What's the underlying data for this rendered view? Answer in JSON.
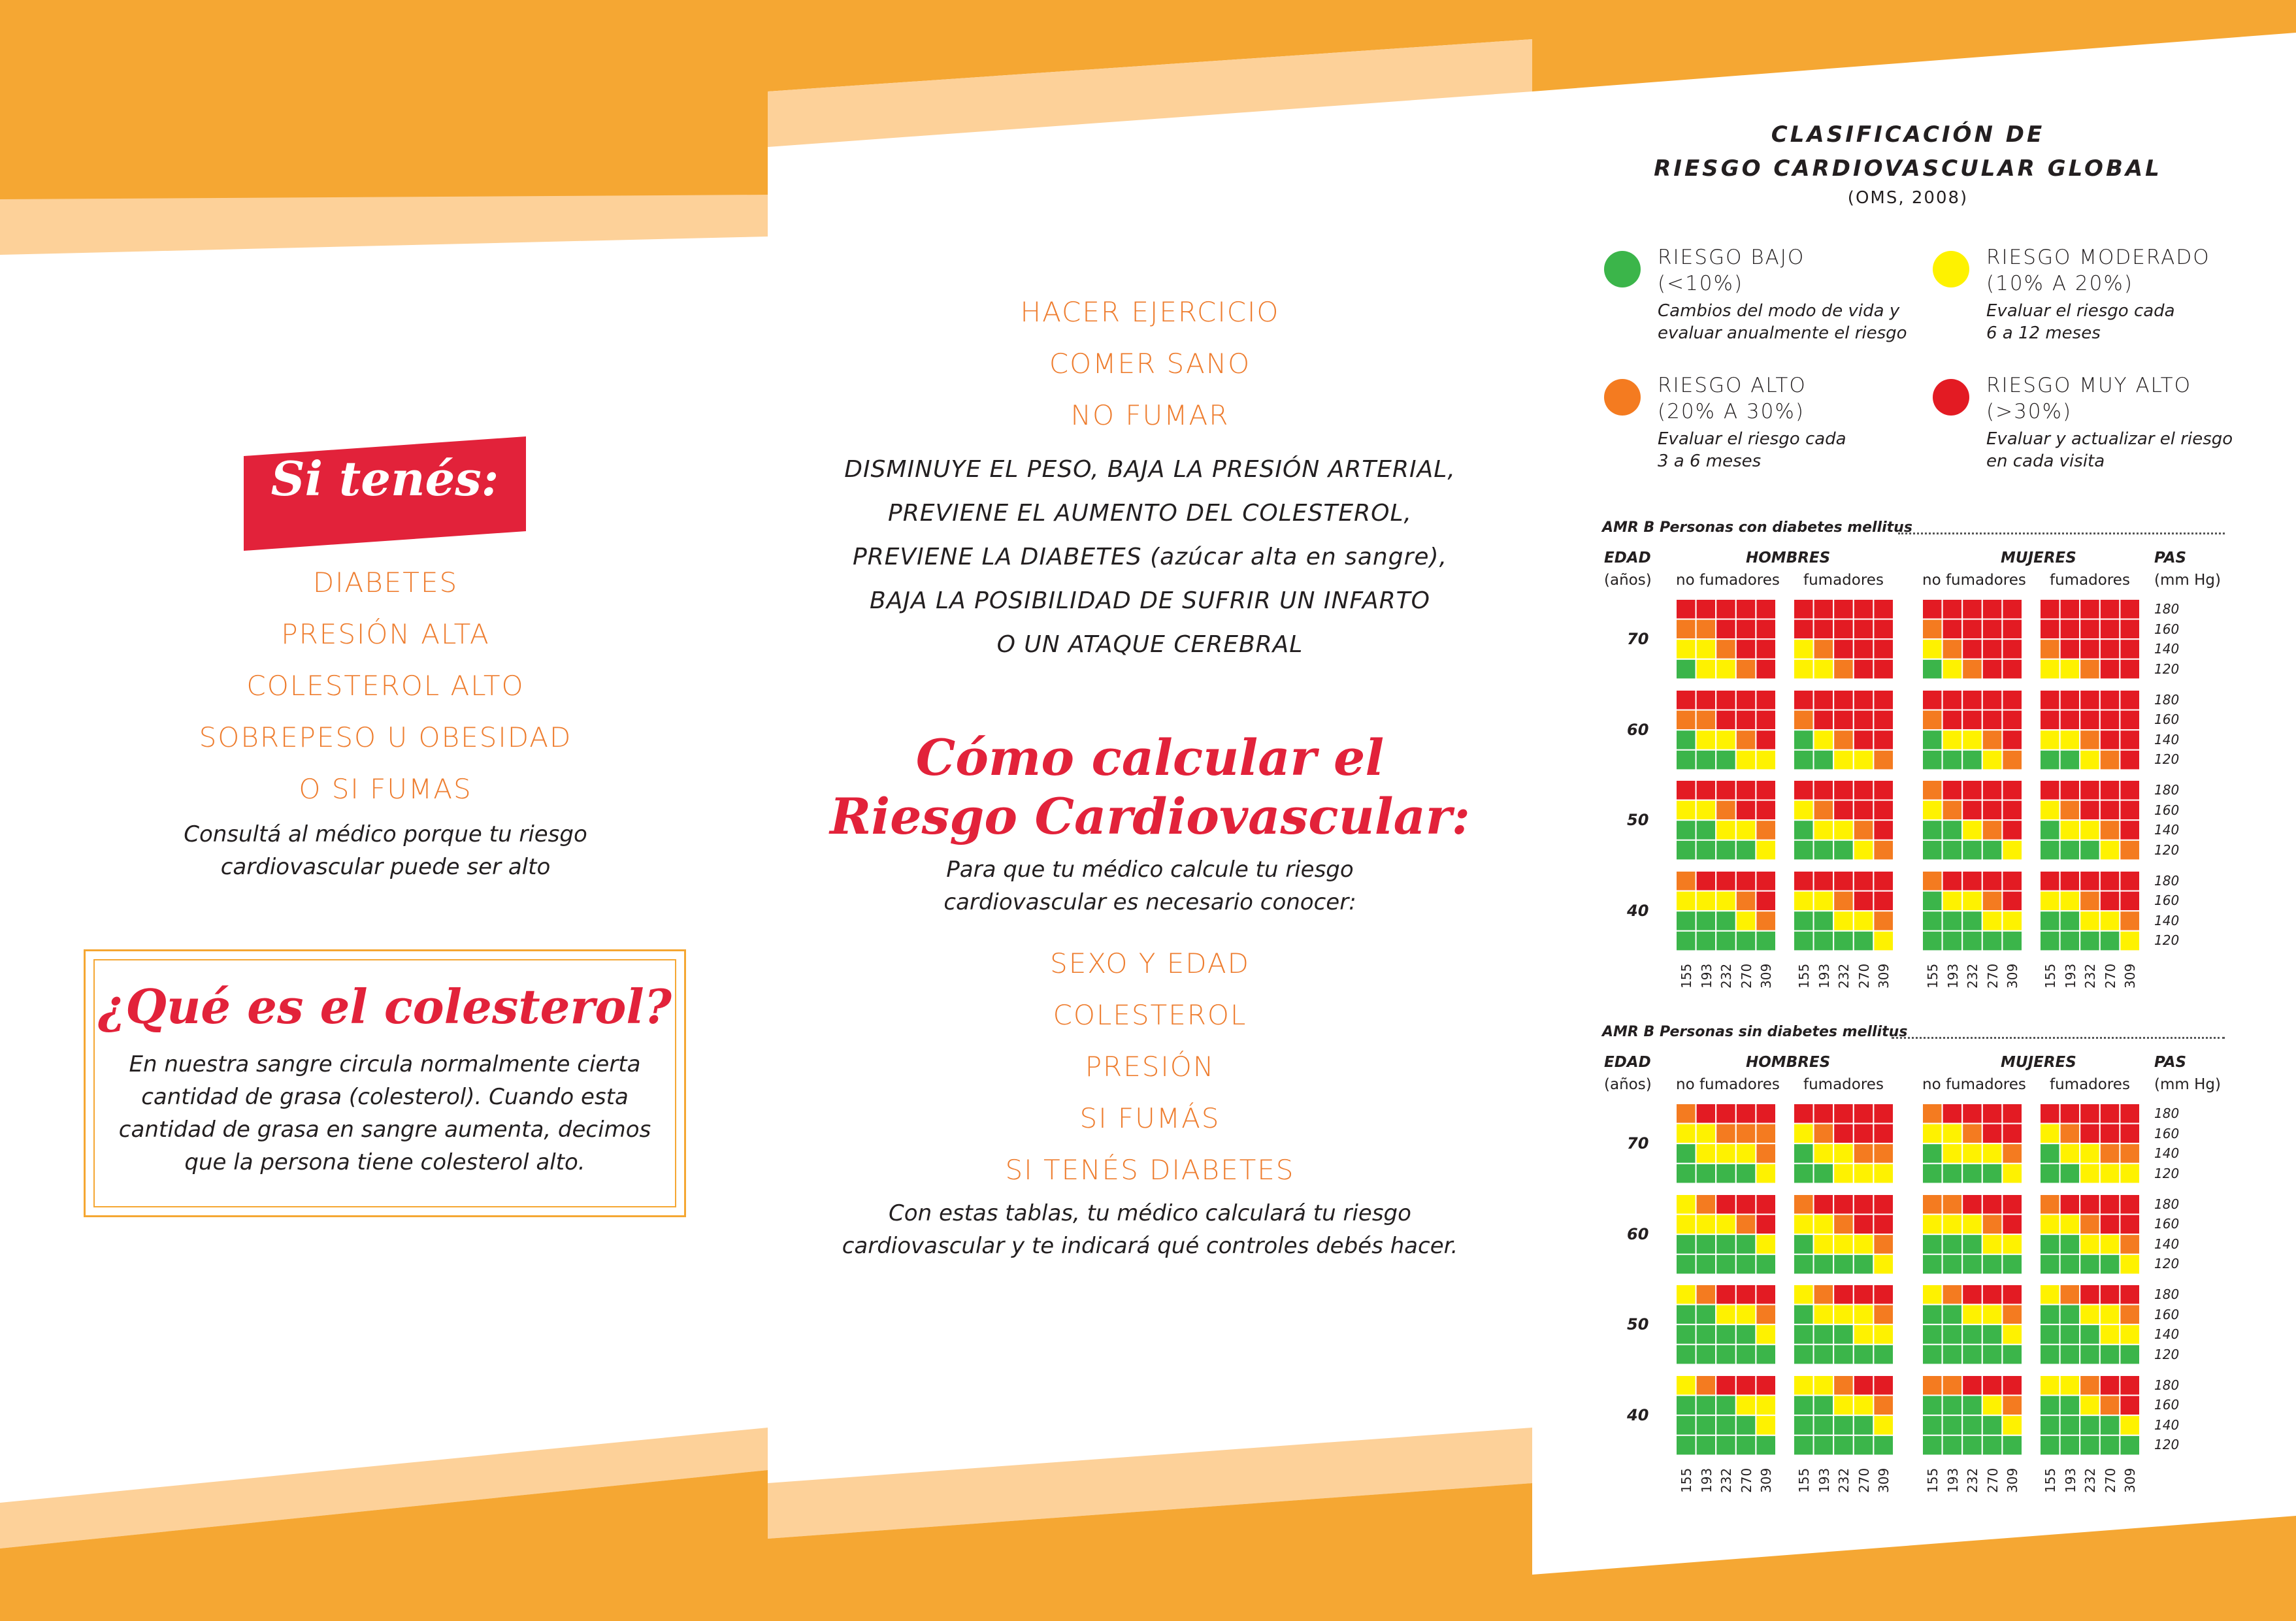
{
  "colors": {
    "orange_band": "#f5a733",
    "orange_light": "#fdd199",
    "accent_orange": "#ee7d2f",
    "accent_red": "#e2223a",
    "risk_low": "#3bb54a",
    "risk_moderate": "#fef200",
    "risk_high": "#f47b20",
    "risk_very_high": "#e31b23"
  },
  "left": {
    "badge_text": "Si tenés:",
    "conditions": [
      "DIABETES",
      "PRESIÓN ALTA",
      "COLESTEROL ALTO",
      "SOBREPESO U OBESIDAD",
      "O SI FUMAS"
    ],
    "note_line1": "Consultá al médico porque tu riesgo",
    "note_line2": "cardiovascular puede ser alto",
    "chol_title": "¿Qué es el colesterol?",
    "chol_text": [
      "En nuestra sangre circula normalmente cierta",
      "cantidad de grasa (colesterol). Cuando esta",
      "cantidad de grasa en sangre aumenta, decimos",
      "que la persona tiene colesterol alto."
    ]
  },
  "middle": {
    "habits": [
      "HACER EJERCICIO",
      "COMER SANO",
      "NO FUMAR"
    ],
    "benefits": [
      "DISMINUYE EL PESO, BAJA LA PRESIÓN ARTERIAL,",
      "PREVIENE EL AUMENTO DEL COLESTEROL,",
      "PREVIENE LA DIABETES",
      "(azúcar alta en sangre),",
      "BAJA LA POSIBILIDAD DE SUFRIR UN INFARTO",
      "O UN ATAQUE CEREBRAL"
    ],
    "calc_title_1": "Cómo calcular el",
    "calc_title_2": "Riesgo Cardiovascular:",
    "calc_sub_1": "Para que tu médico calcule tu riesgo",
    "calc_sub_2": "cardiovascular es necesario conocer:",
    "factors": [
      "SEXO Y EDAD",
      "COLESTEROL",
      "PRESIÓN",
      "SI FUMÁS",
      "SI TENÉS DIABETES"
    ],
    "note_1": "Con estas tablas, tu médico calculará tu riesgo",
    "note_2": "cardiovascular y te indicará qué controles debés hacer."
  },
  "right": {
    "title_1": "CLASIFICACIÓN DE",
    "title_2": "RIESGO CARDIOVASCULAR GLOBAL",
    "source": "(OMS, 2008)",
    "legend": [
      {
        "head1": "RIESGO BAJO",
        "head2": "(<10%)",
        "desc1": "Cambios del modo de vida y",
        "desc2": "evaluar anualmente el riesgo",
        "color": "#3bb54a"
      },
      {
        "head1": "RIESGO MODERADO",
        "head2": "(10% A 20%)",
        "desc1": "Evaluar el riesgo cada",
        "desc2": "6 a 12 meses",
        "color": "#fef200"
      },
      {
        "head1": "RIESGO ALTO",
        "head2": "(20% A 30%)",
        "desc1": "Evaluar el riesgo cada",
        "desc2": "3 a 6 meses",
        "color": "#f47b20"
      },
      {
        "head1": "RIESGO MUY ALTO",
        "head2": "(>30%)",
        "desc1": "Evaluar y actualizar el riesgo",
        "desc2": "en cada visita",
        "color": "#e31b23"
      }
    ],
    "labels": {
      "edad": "EDAD",
      "anios": "(años)",
      "hombres": "HOMBRES",
      "mujeres": "MUJERES",
      "no_fumadores": "no fumadores",
      "fumadores": "fumadores",
      "pas": "PAS",
      "mmhg": "(mm Hg)"
    },
    "ages": [
      "70",
      "60",
      "50",
      "40"
    ],
    "pas_values": [
      "180",
      "160",
      "140",
      "120"
    ],
    "chol_values": [
      "155",
      "193",
      "232",
      "270",
      "309"
    ],
    "sections": [
      {
        "title": "AMR B Personas con diabetes mellitus",
        "rows": [
          [
            "RRRRR",
            "RRRRR",
            "RRRRR",
            "RRRRR"
          ],
          [
            "OORRR",
            "RRRRR",
            "ORRRR",
            "RRRRR"
          ],
          [
            "YYORR",
            "YORRR",
            "YORRR",
            "ORRRR"
          ],
          [
            "GYYOR",
            "YYORR",
            "GYORR",
            "YYORR"
          ],
          [
            "RRRRR",
            "RRRRR",
            "RRRRR",
            "RRRRR"
          ],
          [
            "OORRR",
            "ORRRR",
            "ORRRR",
            "RRRRR"
          ],
          [
            "GYYOR",
            "GYORR",
            "GYYOR",
            "YYORR"
          ],
          [
            "GGGYY",
            "GGYYO",
            "GGGYO",
            "GGYOR"
          ],
          [
            "RRRRR",
            "RRRRR",
            "ORRRR",
            "RRRRR"
          ],
          [
            "YYORR",
            "YORRR",
            "YORRR",
            "YORRR"
          ],
          [
            "GGYYO",
            "GYYOR",
            "GGYOR",
            "GYYOR"
          ],
          [
            "GGGGY",
            "GGGYO",
            "GGGGY",
            "GGGYO"
          ],
          [
            "ORRRR",
            "RRRRR",
            "ORRRR",
            "RRRRR"
          ],
          [
            "YYYOR",
            "YYORR",
            "GYYOR",
            "YYORR"
          ],
          [
            "GGGYO",
            "GGYYO",
            "GGGYY",
            "GGYYO"
          ],
          [
            "GGGGG",
            "GGGGY",
            "GGGGG",
            "GGGGY"
          ]
        ]
      },
      {
        "title": "AMR B Personas sin diabetes mellitus",
        "rows": [
          [
            "ORRRR",
            "RRRRR",
            "ORRRR",
            "RRRRR"
          ],
          [
            "YYOOO",
            "YORRR",
            "YYORR",
            "YORRR"
          ],
          [
            "GYYYO",
            "GYYOO",
            "GYYYO",
            "GYYOO"
          ],
          [
            "GGGGY",
            "GGYYY",
            "GGGGY",
            "GGYYY"
          ],
          [
            "YORRR",
            "ORRRR",
            "OORRR",
            "ORRRR"
          ],
          [
            "YYYOR",
            "YYORR",
            "YYYOR",
            "YYORR"
          ],
          [
            "GGGGY",
            "GYYYO",
            "GGGYY",
            "GGYYO"
          ],
          [
            "GGGGG",
            "GGGGY",
            "GGGGG",
            "GGGGY"
          ],
          [
            "YORRR",
            "YORRR",
            "YORRR",
            "YORRR"
          ],
          [
            "GGYYO",
            "GYYYO",
            "GGYYO",
            "GGYYO"
          ],
          [
            "GGGGY",
            "GGGYY",
            "GGGGY",
            "GGGYY"
          ],
          [
            "GGGGG",
            "GGGGG",
            "GGGGG",
            "GGGGG"
          ],
          [
            "YORRR",
            "YYORR",
            "OORRR",
            "YYORR"
          ],
          [
            "GGGYY",
            "GGYYO",
            "GGGYO",
            "GGYOR"
          ],
          [
            "GGGGY",
            "GGGGY",
            "GGGGY",
            "GGGGY"
          ],
          [
            "GGGGG",
            "GGGGG",
            "GGGGG",
            "GGGGG"
          ]
        ]
      }
    ]
  }
}
